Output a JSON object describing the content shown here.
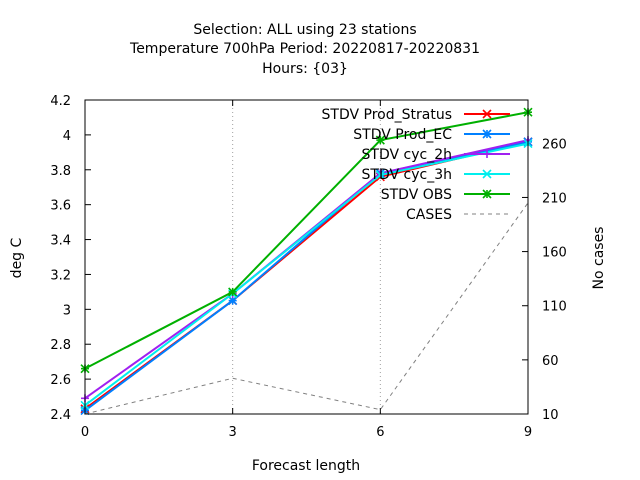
{
  "chart_data": {
    "type": "line",
    "title_lines": [
      "Selection: ALL using    23 stations",
      "Temperature 700hPa   Period: 20220817-20220831",
      "Hours: {03}"
    ],
    "xlabel": "Forecast length",
    "ylabel": "deg C",
    "y2label": "No cases",
    "x": [
      0,
      3,
      6,
      9
    ],
    "xlim": [
      0,
      9
    ],
    "ylim": [
      2.4,
      4.2
    ],
    "y2lim": [
      10,
      300
    ],
    "xticks": [
      "0",
      "3",
      "6",
      "9"
    ],
    "yticks": [
      "2.4",
      "2.6",
      "2.8",
      "3",
      "3.2",
      "3.4",
      "3.6",
      "3.8",
      "4",
      "4.2"
    ],
    "y2ticks": [
      "10",
      "60",
      "110",
      "160",
      "210",
      "260"
    ],
    "grid": true,
    "legend_position": "top-right",
    "series": [
      {
        "name": "STDV Prod_Stratus",
        "values": [
          2.43,
          3.05,
          3.76,
          3.96
        ],
        "color": "#ff0000",
        "marker": "x",
        "axis": "y"
      },
      {
        "name": "STDV Prod_EC",
        "values": [
          2.42,
          3.05,
          3.78,
          3.96
        ],
        "color": "#0080ff",
        "marker": "asterisk",
        "axis": "y"
      },
      {
        "name": "STDV cyc_2h",
        "values": [
          2.49,
          3.09,
          3.78,
          3.97
        ],
        "color": "#a020f0",
        "marker": "plus",
        "axis": "y"
      },
      {
        "name": "STDV cyc_3h",
        "values": [
          2.45,
          3.09,
          3.77,
          3.95
        ],
        "color": "#00eeee",
        "marker": "x",
        "axis": "y"
      },
      {
        "name": "STDV OBS",
        "values": [
          2.66,
          3.1,
          3.97,
          4.13
        ],
        "color": "#00b000",
        "marker": "asterisk",
        "axis": "y"
      },
      {
        "name": "CASES",
        "values": [
          10,
          43,
          14,
          205
        ],
        "color": "#808080",
        "marker": "none",
        "dash": true,
        "axis": "y2"
      }
    ]
  }
}
